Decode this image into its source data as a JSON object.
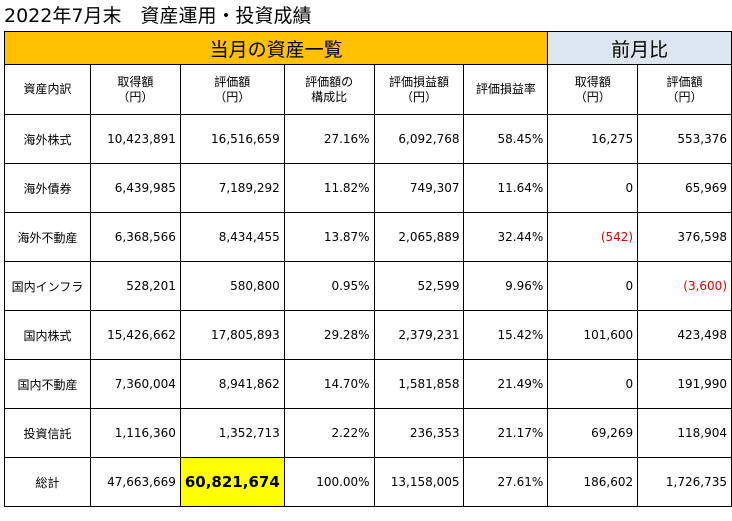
{
  "title": "2022年7月末　資産運用・投資成績",
  "banner": {
    "current": "当月の資産一覧",
    "previous": "前月比"
  },
  "headers": [
    "資産内訳",
    "取得額\n（円）",
    "評価額\n（円）",
    "評価額の\n構成比",
    "評価損益額\n（円）",
    "評価損益率",
    "取得額\n（円）",
    "評価額\n（円）"
  ],
  "rows": [
    {
      "name": "海外株式",
      "cells": [
        "10,423,891",
        "16,516,659",
        "27.16%",
        "6,092,768",
        "58.45%",
        "16,275",
        "553,376"
      ]
    },
    {
      "name": "海外債券",
      "cells": [
        "6,439,985",
        "7,189,292",
        "11.82%",
        "749,307",
        "11.64%",
        "0",
        "65,969"
      ]
    },
    {
      "name": "海外不動産",
      "cells": [
        "6,368,566",
        "8,434,455",
        "13.87%",
        "2,065,889",
        "32.44%",
        "(542)",
        "376,598"
      ]
    },
    {
      "name": "国内インフラ",
      "cells": [
        "528,201",
        "580,800",
        "0.95%",
        "52,599",
        "9.96%",
        "0",
        "(3,600)"
      ]
    },
    {
      "name": "国内株式",
      "cells": [
        "15,426,662",
        "17,805,893",
        "29.28%",
        "2,379,231",
        "15.42%",
        "101,600",
        "423,498"
      ]
    },
    {
      "name": "国内不動産",
      "cells": [
        "7,360,004",
        "8,941,862",
        "14.70%",
        "1,581,858",
        "21.49%",
        "0",
        "191,990"
      ]
    },
    {
      "name": "投資信託",
      "cells": [
        "1,116,360",
        "1,352,713",
        "2.22%",
        "236,353",
        "21.17%",
        "69,269",
        "118,904"
      ]
    },
    {
      "name": "総計",
      "cells": [
        "47,663,669",
        "60,821,674",
        "100.00%",
        "13,158,005",
        "27.61%",
        "186,602",
        "1,726,735"
      ]
    }
  ],
  "colors": {
    "current_banner": "#ffc000",
    "previous_banner": "#dce6f1",
    "highlight": "#ffff00",
    "negative": "#e00000"
  }
}
